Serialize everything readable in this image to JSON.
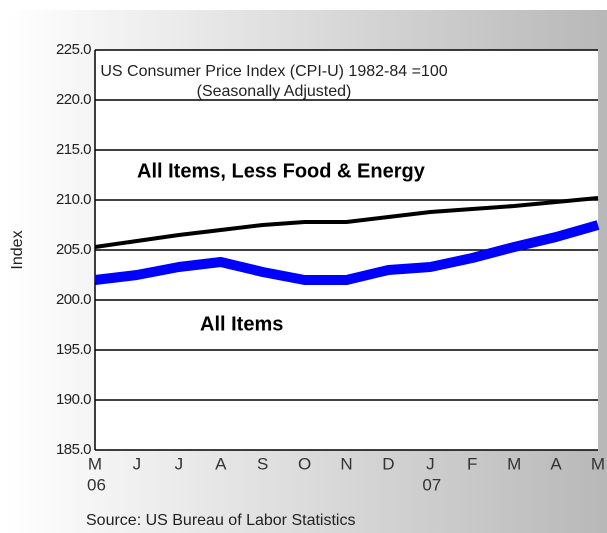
{
  "chart_data": {
    "type": "line",
    "title": "US Consumer Price Index (CPI-U) 1982-84 =100",
    "subtitle": "(Seasonally Adjusted)",
    "y_label": "Index",
    "source": "Source: US Bureau of Labor Statistics",
    "categories": [
      "M",
      "J",
      "J",
      "A",
      "S",
      "O",
      "N",
      "D",
      "J",
      "F",
      "M",
      "A",
      "M"
    ],
    "year_labels": [
      "06",
      null,
      null,
      null,
      null,
      null,
      null,
      null,
      "07",
      null,
      null,
      null,
      null
    ],
    "series": [
      {
        "name": "All Items, Less Food & Energy",
        "color": "#000000",
        "values": [
          205.3,
          205.9,
          206.5,
          207.0,
          207.5,
          207.8,
          207.8,
          208.3,
          208.8,
          209.1,
          209.4,
          209.8,
          210.2
        ]
      },
      {
        "name": "All Items",
        "color": "#0000ff",
        "values": [
          202.0,
          202.5,
          203.3,
          203.8,
          202.8,
          202.0,
          202.0,
          203.0,
          203.3,
          204.2,
          205.3,
          206.3,
          207.5
        ]
      }
    ],
    "ylim": [
      185,
      225
    ],
    "yticks": [
      {
        "value": 185,
        "label": "185.0"
      },
      {
        "value": 190,
        "label": "190.0"
      },
      {
        "value": 195,
        "label": "195.0"
      },
      {
        "value": 200,
        "label": "200.0"
      },
      {
        "value": 205,
        "label": "205.0"
      },
      {
        "value": 210,
        "label": "210.0"
      },
      {
        "value": 215,
        "label": "215.0"
      },
      {
        "value": 220,
        "label": "220.0"
      },
      {
        "value": 225,
        "label": "225.0"
      }
    ],
    "grid": true
  }
}
